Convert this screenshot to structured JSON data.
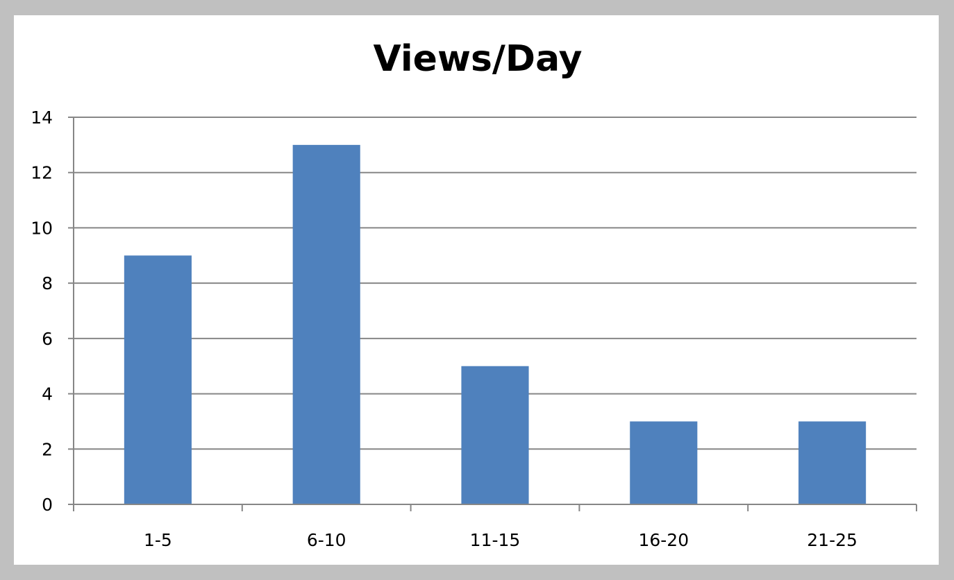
{
  "chart_data": {
    "type": "bar",
    "title": "Views/Day",
    "xlabel": "",
    "ylabel": "",
    "categories": [
      "1-5",
      "6-10",
      "11-15",
      "16-20",
      "21-25"
    ],
    "values": [
      9,
      13,
      5,
      3,
      3
    ],
    "ylim": [
      0,
      14
    ],
    "yticks": [
      0,
      2,
      4,
      6,
      8,
      10,
      12,
      14
    ],
    "grid": true,
    "legend": "none",
    "bar_color": "#4f81bd"
  }
}
